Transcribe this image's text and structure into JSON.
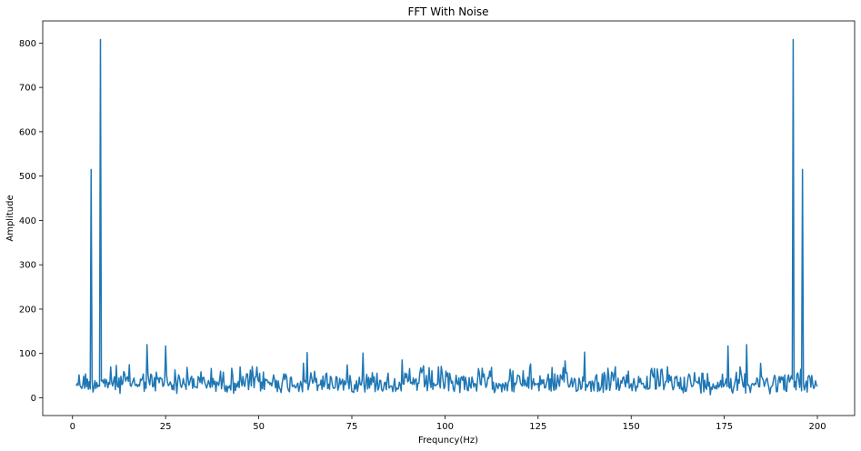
{
  "chart_data": {
    "type": "line",
    "title": "FFT With Noise",
    "xlabel": "Frequncy(Hz)",
    "ylabel": "Amplitude",
    "xlim": [
      -8,
      210
    ],
    "ylim": [
      -40,
      850
    ],
    "xticks": [
      0,
      25,
      50,
      75,
      100,
      125,
      150,
      175,
      200
    ],
    "yticks": [
      0,
      100,
      200,
      300,
      400,
      500,
      600,
      700,
      800
    ],
    "grid": false,
    "line_color": "#1f77b4",
    "series": [
      {
        "noise": {
          "x_range": [
            1,
            200
          ],
          "step": 0.25,
          "typical_range": [
            5,
            100
          ],
          "max_spike": 120
        },
        "peaks": [
          {
            "x": 5,
            "y": 515
          },
          {
            "x": 7.5,
            "y": 808
          },
          {
            "x": 193.5,
            "y": 808
          },
          {
            "x": 196,
            "y": 515
          }
        ],
        "notable_spikes": [
          {
            "x": 20,
            "y": 120
          },
          {
            "x": 25,
            "y": 117
          },
          {
            "x": 63,
            "y": 102
          },
          {
            "x": 78,
            "y": 101
          },
          {
            "x": 137.5,
            "y": 103
          },
          {
            "x": 176,
            "y": 117
          },
          {
            "x": 181,
            "y": 120
          }
        ]
      }
    ]
  }
}
